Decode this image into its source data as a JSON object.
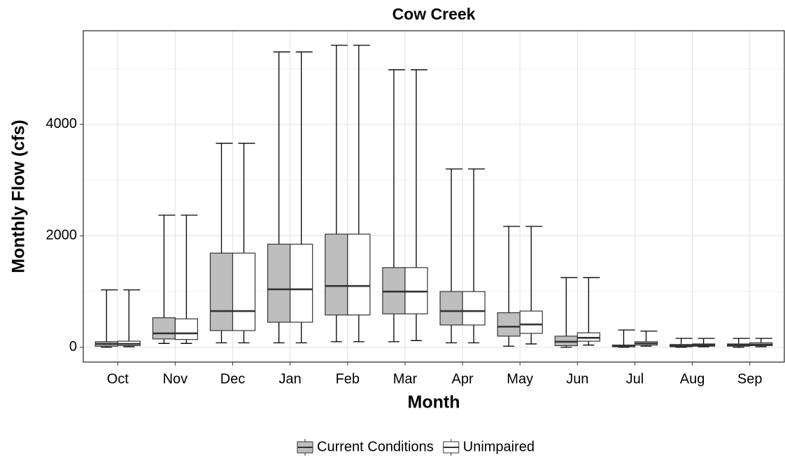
{
  "chart_data": {
    "type": "boxplot",
    "title": "Cow Creek",
    "x_label": "Month",
    "y_label": "Monthly Flow (cfs)",
    "categories": [
      "Oct",
      "Nov",
      "Dec",
      "Jan",
      "Feb",
      "Mar",
      "Apr",
      "May",
      "Jun",
      "Jul",
      "Aug",
      "Sep"
    ],
    "series": [
      {
        "name": "Current Conditions",
        "color": "#bebebe",
        "min": [
          0,
          70,
          80,
          80,
          100,
          100,
          80,
          20,
          0,
          0,
          0,
          0
        ],
        "q1": [
          20,
          150,
          300,
          450,
          580,
          600,
          400,
          200,
          30,
          10,
          10,
          20
        ],
        "median": [
          60,
          250,
          650,
          1040,
          1100,
          1000,
          650,
          370,
          100,
          20,
          30,
          40
        ],
        "q3": [
          100,
          530,
          1690,
          1850,
          2030,
          1430,
          1000,
          620,
          200,
          40,
          50,
          60
        ],
        "max": [
          1030,
          2370,
          3660,
          5300,
          5420,
          4980,
          3200,
          2170,
          1250,
          310,
          160,
          160
        ]
      },
      {
        "name": "Unimpaired",
        "color": "#ffffff",
        "min": [
          10,
          70,
          80,
          80,
          100,
          120,
          80,
          60,
          40,
          20,
          10,
          10
        ],
        "q1": [
          30,
          140,
          300,
          450,
          580,
          600,
          400,
          250,
          110,
          40,
          20,
          30
        ],
        "median": [
          60,
          250,
          650,
          1040,
          1100,
          1000,
          650,
          410,
          170,
          70,
          40,
          50
        ],
        "q3": [
          110,
          510,
          1690,
          1850,
          2030,
          1430,
          1000,
          650,
          260,
          100,
          60,
          80
        ],
        "max": [
          1030,
          2370,
          3660,
          5300,
          5420,
          4980,
          3200,
          2170,
          1250,
          290,
          160,
          160
        ]
      }
    ],
    "ylim": [
      -265,
      5680
    ],
    "yticks": [
      0,
      2000,
      4000
    ],
    "y_minor_grid": [
      1000,
      3000,
      5000
    ],
    "grid": true,
    "legend": "bottom"
  }
}
